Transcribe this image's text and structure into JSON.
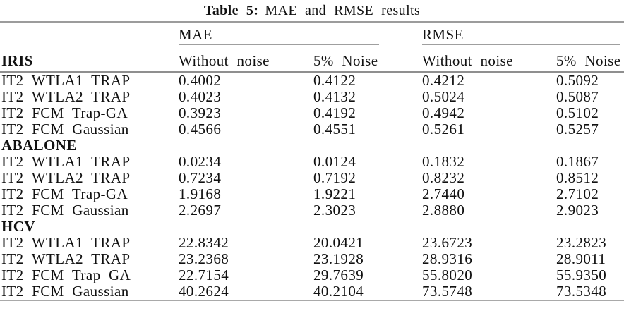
{
  "caption": {
    "label": "Table 5:",
    "text": "MAE and RMSE results"
  },
  "colors": {
    "text": "#111111",
    "rule_top": "#9c9c9c",
    "rule_mid": "#8f8f8f",
    "rule_cmid": "#9f9f9f",
    "rule_bottom": "#a9a9a9",
    "background": "#ffffff"
  },
  "table": {
    "groups": [
      {
        "label": "MAE"
      },
      {
        "label": "RMSE"
      }
    ],
    "row_group_header": "IRIS",
    "columns": [
      "Without noise",
      "5% Noise",
      "Without noise",
      "5% Noise"
    ],
    "rows": [
      {
        "type": "data",
        "label": "IT2 WTLA1 TRAP",
        "values": [
          "0.4002",
          "0.4122",
          "0.4212",
          "0.5092"
        ]
      },
      {
        "type": "data",
        "label": "IT2 WTLA2 TRAP",
        "values": [
          "0.4023",
          "0.4132",
          "0.5024",
          "0.5087"
        ]
      },
      {
        "type": "data",
        "label": "IT2 FCM Trap-GA",
        "values": [
          "0.3923",
          "0.4192",
          "0.4942",
          "0.5102"
        ]
      },
      {
        "type": "data",
        "label": "IT2 FCM Gaussian",
        "values": [
          "0.4566",
          "0.4551",
          "0.5261",
          "0.5257"
        ]
      },
      {
        "type": "section",
        "label": "ABALONE"
      },
      {
        "type": "data",
        "label": "IT2 WTLA1 TRAP",
        "values": [
          "0.0234",
          "0.0124",
          "0.1832",
          "0.1867"
        ]
      },
      {
        "type": "data",
        "label": "IT2 WTLA2 TRAP",
        "values": [
          "0.7234",
          "0.7192",
          "0.8232",
          "0.8512"
        ]
      },
      {
        "type": "data",
        "label": "IT2 FCM Trap-GA",
        "values": [
          "1.9168",
          "1.9221",
          "2.7440",
          "2.7102"
        ]
      },
      {
        "type": "data",
        "label": "IT2 FCM Gaussian",
        "values": [
          "2.2697",
          "2.3023",
          "2.8880",
          "2.9023"
        ]
      },
      {
        "type": "section",
        "label": "HCV"
      },
      {
        "type": "data",
        "label": "IT2 WTLA1 TRAP",
        "values": [
          "22.8342",
          "20.0421",
          "23.6723",
          "23.2823"
        ]
      },
      {
        "type": "data",
        "label": "IT2 WTLA2 TRAP",
        "values": [
          "23.2368",
          "23.1928",
          "28.9316",
          "28.9011"
        ]
      },
      {
        "type": "data",
        "label": "IT2 FCM Trap GA",
        "values": [
          "22.7154",
          "29.7639",
          "55.8020",
          "55.9350"
        ]
      },
      {
        "type": "data",
        "label": "IT2 FCM Gaussian",
        "values": [
          "40.2624",
          "40.2104",
          "73.5748",
          "73.5348"
        ]
      }
    ]
  }
}
